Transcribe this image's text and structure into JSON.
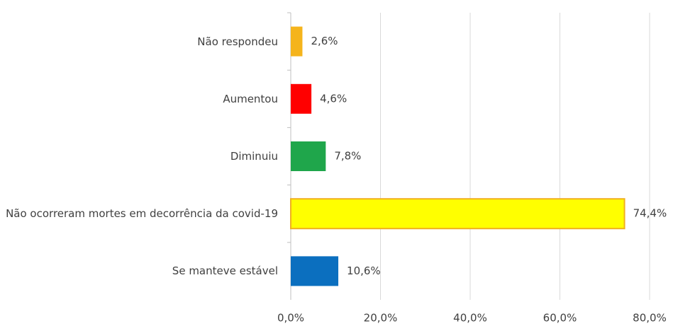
{
  "chart_data": {
    "type": "hbar",
    "categories": [
      "Não respondeu",
      "Aumentou",
      "Diminuiu",
      "Não ocorreram mortes em decorrência da covid-19",
      "Se manteve estável"
    ],
    "values": [
      2.6,
      4.6,
      7.8,
      74.4,
      10.6
    ],
    "value_labels": [
      "2,6%",
      "4,6%",
      "7,8%",
      "74,4%",
      "10,6%"
    ],
    "colors": [
      "#f5b41c",
      "#ff0000",
      "#1fa64b",
      "#ffff00",
      "#0b6fbf"
    ],
    "xlim": [
      0,
      80
    ],
    "xticks": [
      {
        "value": 0,
        "label": "0,0%"
      },
      {
        "value": 20,
        "label": "20,0%"
      },
      {
        "value": 40,
        "label": "40,0%"
      },
      {
        "value": 60,
        "label": "60,0%"
      },
      {
        "value": 80,
        "label": "80,0%"
      }
    ],
    "grid": true
  }
}
